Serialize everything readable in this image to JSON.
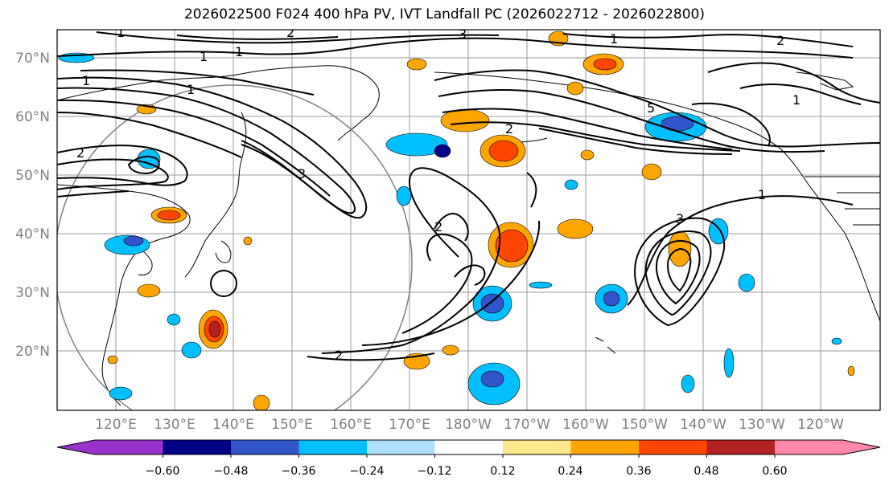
{
  "title": "2026022500 F024 400 hPa PV, IVT Landfall PC (2026022712 - 2026022800)",
  "lat_labels": [
    "70°N",
    "60°N",
    "50°N",
    "40°N",
    "30°N",
    "20°N"
  ],
  "lon_labels": [
    "120°E",
    "130°E",
    "140°E",
    "150°E",
    "160°E",
    "170°E",
    "180°W",
    "170°W",
    "160°W",
    "150°W",
    "140°W",
    "130°W",
    "120°W"
  ],
  "contour_labels": [
    "1",
    "1",
    "1",
    "1",
    "1",
    "1",
    "1",
    "1",
    "2",
    "2",
    "2",
    "2",
    "2",
    "2",
    "3",
    "3",
    "3",
    "5"
  ],
  "colorbar": {
    "ticks": [
      "−0.60",
      "−0.48",
      "−0.36",
      "−0.24",
      "−0.12",
      "0.12",
      "0.24",
      "0.36",
      "0.48",
      "0.60"
    ],
    "under_color": "#9932cc",
    "over_color": "#ff88aa",
    "bin_colors": [
      "#9932cc",
      "#000088",
      "#3355cc",
      "#00bfff",
      "#b0e0ff",
      "#ffffff",
      "#ffe88a",
      "#ffa500",
      "#ff4500",
      "#b22222",
      "#ff88aa"
    ]
  }
}
